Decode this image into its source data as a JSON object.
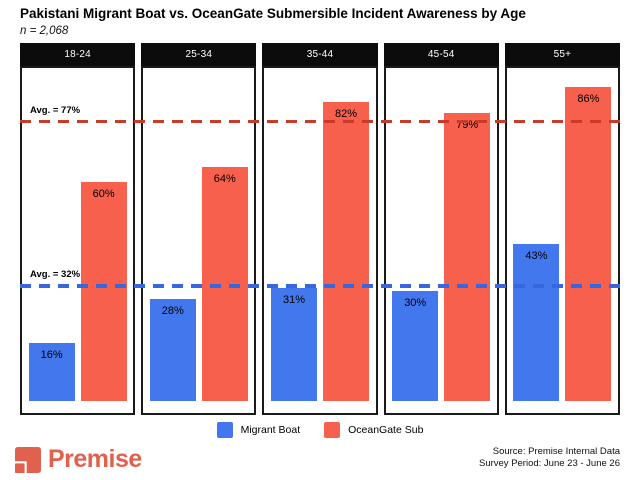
{
  "title": "Pakistani Migrant Boat vs. OceanGate Submersible Incident Awareness by Age",
  "subtitle": "n = 2,068",
  "chart_data": {
    "type": "bar",
    "facet_label": "age group",
    "categories": [
      "18-24",
      "25-34",
      "35-44",
      "45-54",
      "55+"
    ],
    "series": [
      {
        "name": "Migrant Boat",
        "color": "#4377EE",
        "values": [
          16,
          28,
          31,
          30,
          43
        ]
      },
      {
        "name": "OceanGate Sub",
        "color": "#F8604E",
        "values": [
          60,
          64,
          82,
          79,
          86
        ]
      }
    ],
    "value_suffix": "%",
    "ylim": [
      0,
      90
    ],
    "grid": false,
    "legend_position": "bottom",
    "avg_lines": [
      {
        "label": "Avg. = 77%",
        "value": 77,
        "color": "#C93A28",
        "style": "dashed"
      },
      {
        "label": "Avg. = 32%",
        "value": 32,
        "color": "#3866DF",
        "style": "dashed"
      }
    ]
  },
  "legend": {
    "items": [
      {
        "label": "Migrant Boat",
        "color": "#4377EE"
      },
      {
        "label": "OceanGate Sub",
        "color": "#F8604E"
      }
    ]
  },
  "footer": {
    "brand": "Premise",
    "brand_color": "#E2604E",
    "source_line1": "Source: Premise Internal Data",
    "source_line2": "Survey Period: June 23 - June 26"
  }
}
